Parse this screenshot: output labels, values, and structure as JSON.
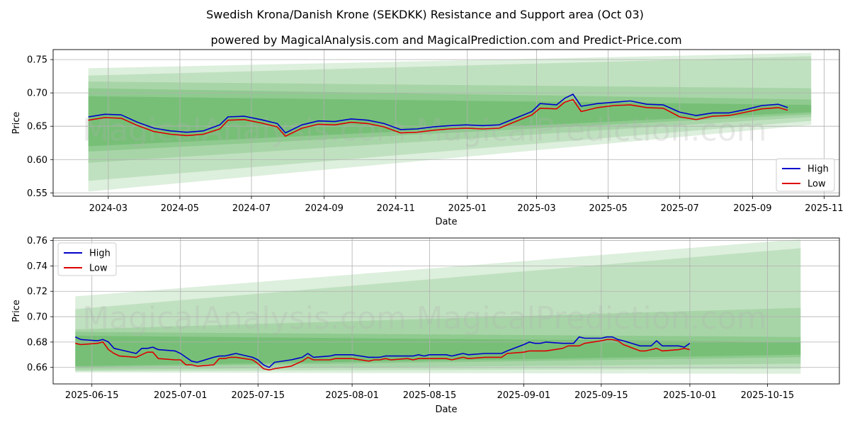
{
  "title": "Swedish Krona/Danish Krone (SEKDKK) Resistance and Support area (Oct 03)",
  "subtitle": "powered by MagicalAnalysis.com and MagicalPrediction.com and Predict-Price.com",
  "watermarks": [
    "MagicalAnalysis.com",
    "MagicalPrediction.com"
  ],
  "colors": {
    "high": "#0000cc",
    "low": "#dd0000",
    "band": "#2e9e2e"
  },
  "chart_data": [
    {
      "type": "line",
      "xlabel": "Date",
      "ylabel": "Price",
      "x_range": [
        "2024-01-14",
        "2025-11-14"
      ],
      "ylim": [
        0.545,
        0.765
      ],
      "yticks": [
        0.55,
        0.6,
        0.65,
        0.7,
        0.75
      ],
      "ytick_labels": [
        "0.55",
        "0.60",
        "0.65",
        "0.70",
        "0.75"
      ],
      "xticks": [
        "2024-03-01",
        "2024-05-01",
        "2024-07-01",
        "2024-09-01",
        "2024-11-01",
        "2025-01-01",
        "2025-03-01",
        "2025-05-01",
        "2025-07-01",
        "2025-09-01",
        "2025-11-01"
      ],
      "xtick_labels": [
        "2024-03",
        "2024-05",
        "2024-07",
        "2024-09",
        "2024-11",
        "2025-01",
        "2025-03",
        "2025-05",
        "2025-07",
        "2025-09",
        "2025-11"
      ],
      "legend": {
        "position": "bottom-right",
        "entries": [
          "High",
          "Low"
        ]
      },
      "dates": [
        "2024-02-13",
        "2024-02-27",
        "2024-03-12",
        "2024-03-26",
        "2024-04-09",
        "2024-04-23",
        "2024-05-07",
        "2024-05-21",
        "2024-06-04",
        "2024-06-11",
        "2024-06-25",
        "2024-07-09",
        "2024-07-23",
        "2024-07-30",
        "2024-08-13",
        "2024-08-27",
        "2024-09-10",
        "2024-09-24",
        "2024-10-08",
        "2024-10-22",
        "2024-11-05",
        "2024-11-19",
        "2024-12-03",
        "2024-12-17",
        "2024-12-31",
        "2025-01-14",
        "2025-01-28",
        "2025-02-11",
        "2025-02-25",
        "2025-03-04",
        "2025-03-18",
        "2025-03-25",
        "2025-04-01",
        "2025-04-08",
        "2025-04-22",
        "2025-05-06",
        "2025-05-20",
        "2025-06-03",
        "2025-06-17",
        "2025-07-01",
        "2025-07-15",
        "2025-07-29",
        "2025-08-12",
        "2025-08-26",
        "2025-09-09",
        "2025-09-23",
        "2025-10-01"
      ],
      "series": [
        {
          "name": "High",
          "values": [
            0.664,
            0.668,
            0.667,
            0.656,
            0.647,
            0.643,
            0.641,
            0.643,
            0.652,
            0.664,
            0.665,
            0.66,
            0.654,
            0.64,
            0.652,
            0.658,
            0.657,
            0.661,
            0.659,
            0.654,
            0.645,
            0.646,
            0.649,
            0.651,
            0.652,
            0.651,
            0.652,
            0.662,
            0.672,
            0.684,
            0.682,
            0.692,
            0.698,
            0.68,
            0.684,
            0.686,
            0.688,
            0.683,
            0.682,
            0.671,
            0.666,
            0.67,
            0.67,
            0.675,
            0.681,
            0.683,
            0.678
          ]
        },
        {
          "name": "Low",
          "values": [
            0.659,
            0.663,
            0.662,
            0.651,
            0.642,
            0.638,
            0.636,
            0.638,
            0.646,
            0.659,
            0.66,
            0.655,
            0.649,
            0.635,
            0.647,
            0.653,
            0.652,
            0.656,
            0.654,
            0.649,
            0.64,
            0.641,
            0.644,
            0.646,
            0.647,
            0.646,
            0.647,
            0.657,
            0.667,
            0.677,
            0.676,
            0.686,
            0.69,
            0.672,
            0.678,
            0.681,
            0.682,
            0.678,
            0.677,
            0.664,
            0.66,
            0.665,
            0.666,
            0.671,
            0.676,
            0.678,
            0.674
          ]
        }
      ],
      "bands": {
        "start": "2024-02-13",
        "end": "2025-10-21",
        "upper_start": [
          0.737,
          0.726,
          0.717,
          0.707,
          0.695
        ],
        "upper_end": [
          0.76,
          0.755,
          0.707,
          0.69,
          0.682
        ],
        "lower_start": [
          0.552,
          0.568,
          0.595,
          0.612,
          0.62
        ],
        "lower_end": [
          0.652,
          0.658,
          0.664,
          0.668,
          0.671
        ]
      }
    },
    {
      "type": "line",
      "xlabel": "Date",
      "ylabel": "Price",
      "x_range": [
        "2025-06-08",
        "2025-10-28"
      ],
      "ylim": [
        0.647,
        0.762
      ],
      "yticks": [
        0.66,
        0.68,
        0.7,
        0.72,
        0.74,
        0.76
      ],
      "ytick_labels": [
        "0.66",
        "0.68",
        "0.70",
        "0.72",
        "0.74",
        "0.76"
      ],
      "xticks": [
        "2025-06-15",
        "2025-07-01",
        "2025-07-15",
        "2025-08-01",
        "2025-08-15",
        "2025-09-01",
        "2025-09-15",
        "2025-10-01",
        "2025-10-15"
      ],
      "xtick_labels": [
        "2025-06-15",
        "2025-07-01",
        "2025-07-15",
        "2025-08-01",
        "2025-08-15",
        "2025-09-01",
        "2025-09-15",
        "2025-10-01",
        "2025-10-15"
      ],
      "legend": {
        "position": "top-left",
        "entries": [
          "High",
          "Low"
        ]
      },
      "dates": [
        "2025-06-12",
        "2025-06-13",
        "2025-06-16",
        "2025-06-17",
        "2025-06-18",
        "2025-06-19",
        "2025-06-20",
        "2025-06-23",
        "2025-06-24",
        "2025-06-25",
        "2025-06-26",
        "2025-06-27",
        "2025-06-30",
        "2025-07-01",
        "2025-07-02",
        "2025-07-03",
        "2025-07-04",
        "2025-07-07",
        "2025-07-08",
        "2025-07-09",
        "2025-07-10",
        "2025-07-11",
        "2025-07-14",
        "2025-07-15",
        "2025-07-16",
        "2025-07-17",
        "2025-07-18",
        "2025-07-21",
        "2025-07-22",
        "2025-07-23",
        "2025-07-24",
        "2025-07-25",
        "2025-07-28",
        "2025-07-29",
        "2025-07-30",
        "2025-07-31",
        "2025-08-01",
        "2025-08-04",
        "2025-08-05",
        "2025-08-06",
        "2025-08-07",
        "2025-08-08",
        "2025-08-11",
        "2025-08-12",
        "2025-08-13",
        "2025-08-14",
        "2025-08-15",
        "2025-08-18",
        "2025-08-19",
        "2025-08-20",
        "2025-08-21",
        "2025-08-22",
        "2025-08-25",
        "2025-08-26",
        "2025-08-27",
        "2025-08-28",
        "2025-08-29",
        "2025-09-01",
        "2025-09-02",
        "2025-09-03",
        "2025-09-04",
        "2025-09-05",
        "2025-09-08",
        "2025-09-09",
        "2025-09-10",
        "2025-09-11",
        "2025-09-12",
        "2025-09-15",
        "2025-09-16",
        "2025-09-17",
        "2025-09-18",
        "2025-09-19",
        "2025-09-22",
        "2025-09-23",
        "2025-09-24",
        "2025-09-25",
        "2025-09-26",
        "2025-09-29",
        "2025-09-30",
        "2025-10-01"
      ],
      "series": [
        {
          "name": "High",
          "values": [
            0.684,
            0.682,
            0.681,
            0.682,
            0.68,
            0.675,
            0.674,
            0.671,
            0.675,
            0.675,
            0.676,
            0.674,
            0.673,
            0.671,
            0.668,
            0.665,
            0.664,
            0.668,
            0.669,
            0.669,
            0.67,
            0.671,
            0.668,
            0.666,
            0.662,
            0.66,
            0.664,
            0.666,
            0.667,
            0.668,
            0.671,
            0.668,
            0.669,
            0.67,
            0.67,
            0.67,
            0.67,
            0.668,
            0.668,
            0.668,
            0.669,
            0.669,
            0.669,
            0.669,
            0.67,
            0.669,
            0.67,
            0.67,
            0.669,
            0.67,
            0.671,
            0.67,
            0.671,
            0.671,
            0.671,
            0.671,
            0.673,
            0.678,
            0.68,
            0.679,
            0.679,
            0.68,
            0.679,
            0.679,
            0.679,
            0.684,
            0.683,
            0.683,
            0.684,
            0.684,
            0.682,
            0.681,
            0.677,
            0.677,
            0.677,
            0.681,
            0.677,
            0.677,
            0.676,
            0.679
          ]
        },
        {
          "name": "Low",
          "values": [
            0.679,
            0.678,
            0.679,
            0.68,
            0.674,
            0.671,
            0.669,
            0.668,
            0.67,
            0.672,
            0.672,
            0.667,
            0.666,
            0.666,
            0.662,
            0.662,
            0.661,
            0.662,
            0.667,
            0.667,
            0.668,
            0.668,
            0.666,
            0.663,
            0.659,
            0.658,
            0.659,
            0.661,
            0.663,
            0.665,
            0.668,
            0.666,
            0.666,
            0.667,
            0.667,
            0.667,
            0.667,
            0.665,
            0.666,
            0.666,
            0.667,
            0.666,
            0.667,
            0.666,
            0.667,
            0.667,
            0.667,
            0.667,
            0.666,
            0.667,
            0.668,
            0.667,
            0.668,
            0.668,
            0.668,
            0.668,
            0.671,
            0.672,
            0.673,
            0.673,
            0.673,
            0.673,
            0.675,
            0.677,
            0.677,
            0.677,
            0.679,
            0.681,
            0.682,
            0.682,
            0.681,
            0.678,
            0.673,
            0.673,
            0.674,
            0.675,
            0.673,
            0.674,
            0.675,
            0.674
          ]
        }
      ],
      "bands": {
        "start": "2025-06-12",
        "end": "2025-10-21",
        "upper_start": [
          0.716,
          0.706,
          0.69,
          0.688,
          0.685
        ],
        "upper_end": [
          0.761,
          0.754,
          0.707,
          0.684,
          0.68
        ],
        "lower_start": [
          0.656,
          0.657,
          0.658,
          0.66,
          0.661
        ],
        "lower_end": [
          0.655,
          0.659,
          0.663,
          0.668,
          0.67
        ]
      }
    }
  ]
}
